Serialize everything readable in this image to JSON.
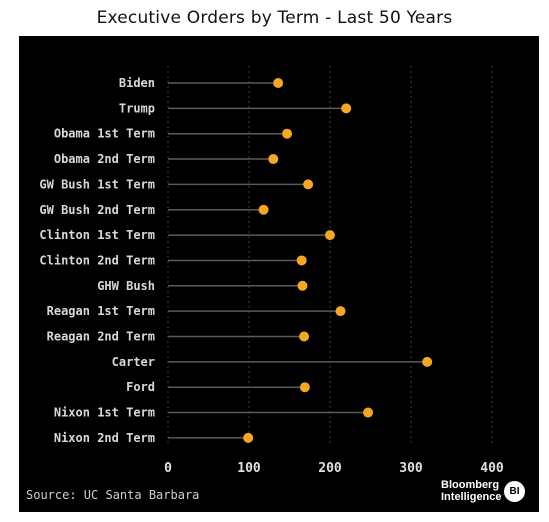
{
  "chart_data": {
    "type": "lollipop",
    "title": "Executive Orders by Term - Last 50 Years",
    "xlabel": "",
    "ylabel": "",
    "xlim": [
      0,
      400
    ],
    "xticks": [
      0,
      100,
      200,
      300,
      400
    ],
    "grid": true,
    "categories": [
      "Biden",
      "Trump",
      "Obama 1st Term",
      "Obama 2nd Term",
      "GW Bush 1st Term",
      "GW Bush 2nd Term",
      "Clinton 1st Term",
      "Clinton 2nd Term",
      "GHW Bush",
      "Reagan 1st Term",
      "Reagan 2nd Term",
      "Carter",
      "Ford",
      "Nixon 1st Term",
      "Nixon 2nd Term"
    ],
    "values": [
      136,
      220,
      147,
      130,
      173,
      118,
      200,
      165,
      166,
      213,
      168,
      320,
      169,
      247,
      99
    ],
    "colors": {
      "dot": "#f5a623",
      "stem": "#5a5a5a",
      "grid": "#3c3c3c",
      "label": "#d8d8d8",
      "tick": "#e0e0e0",
      "background": "#000000"
    }
  },
  "footer": {
    "source": "Source: UC Santa Barbara",
    "brand_line1": "Bloomberg",
    "brand_line2": "Intelligence",
    "brand_badge": "BI"
  }
}
